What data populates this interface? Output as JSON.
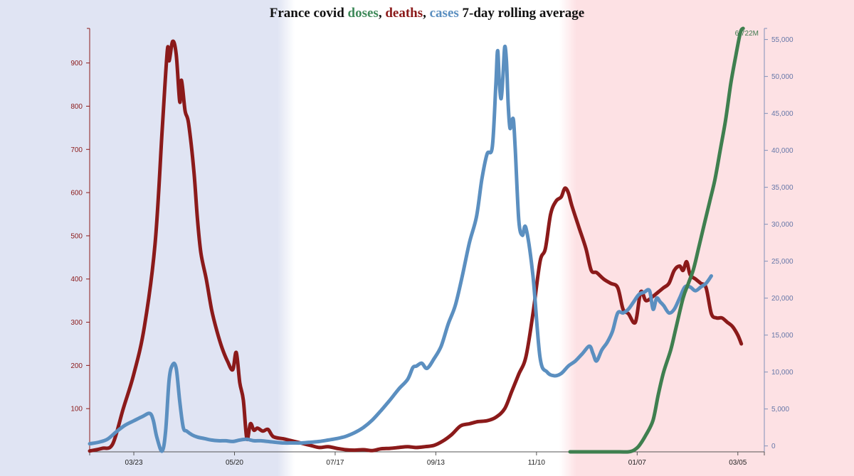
{
  "title": {
    "prefix": "France covid ",
    "doses": "doses",
    "sep1": ", ",
    "deaths": "deaths",
    "sep2": ", ",
    "cases": "cases",
    "suffix": " 7-day rolling average"
  },
  "colors": {
    "doses": "#3f7f4f",
    "deaths": "#8b1a1a",
    "cases": "#5b8fc0",
    "band_left": "#e0e4f3",
    "band_middle": "#ffffff",
    "band_right": "#fde1e4",
    "left_axis": "#8b1a1a",
    "right_axis": "#8090b8"
  },
  "chart_data": {
    "type": "line",
    "x_ticks": [
      "03/23",
      "05/20",
      "07/17",
      "09/13",
      "11/10",
      "01/07",
      "03/05"
    ],
    "x_range_days": [
      -25,
      357
    ],
    "left_axis": {
      "series": "deaths",
      "ylim": [
        0,
        980
      ],
      "ticks": [
        100,
        200,
        300,
        400,
        500,
        600,
        700,
        800,
        900
      ]
    },
    "right_axis": {
      "series": "cases",
      "ylim": [
        -800,
        56500
      ],
      "ticks": [
        0,
        5000,
        10000,
        15000,
        20000,
        25000,
        30000,
        35000,
        40000,
        45000,
        50000,
        55000
      ],
      "tick_labels": [
        "0",
        "5,000",
        "10,000",
        "15,000",
        "20,000",
        "25,000",
        "30,000",
        "35,000",
        "40,000",
        "45,000",
        "50,000",
        "55,000"
      ]
    },
    "peak_label": "6.722M",
    "series": [
      {
        "name": "deaths",
        "axis": "left",
        "points": [
          [
            -25,
            2
          ],
          [
            -18,
            8
          ],
          [
            -12,
            18
          ],
          [
            -6,
            100
          ],
          [
            0,
            180
          ],
          [
            6,
            290
          ],
          [
            12,
            480
          ],
          [
            16,
            740
          ],
          [
            19,
            930
          ],
          [
            20,
            905
          ],
          [
            22,
            950
          ],
          [
            24,
            920
          ],
          [
            26,
            810
          ],
          [
            27,
            860
          ],
          [
            29,
            790
          ],
          [
            31,
            760
          ],
          [
            34,
            650
          ],
          [
            36,
            540
          ],
          [
            38,
            460
          ],
          [
            41,
            400
          ],
          [
            44,
            330
          ],
          [
            47,
            280
          ],
          [
            50,
            240
          ],
          [
            53,
            210
          ],
          [
            56,
            190
          ],
          [
            58,
            230
          ],
          [
            60,
            160
          ],
          [
            62,
            120
          ],
          [
            64,
            30
          ],
          [
            66,
            65
          ],
          [
            68,
            50
          ],
          [
            70,
            55
          ],
          [
            73,
            48
          ],
          [
            76,
            52
          ],
          [
            79,
            35
          ],
          [
            85,
            30
          ],
          [
            90,
            25
          ],
          [
            95,
            20
          ],
          [
            100,
            15
          ],
          [
            105,
            10
          ],
          [
            110,
            12
          ],
          [
            115,
            8
          ],
          [
            120,
            5
          ],
          [
            125,
            4
          ],
          [
            130,
            5
          ],
          [
            135,
            3
          ],
          [
            140,
            7
          ],
          [
            145,
            8
          ],
          [
            150,
            10
          ],
          [
            155,
            12
          ],
          [
            160,
            10
          ],
          [
            165,
            12
          ],
          [
            170,
            15
          ],
          [
            175,
            25
          ],
          [
            180,
            40
          ],
          [
            185,
            60
          ],
          [
            190,
            65
          ],
          [
            195,
            70
          ],
          [
            200,
            72
          ],
          [
            205,
            80
          ],
          [
            210,
            100
          ],
          [
            214,
            140
          ],
          [
            218,
            180
          ],
          [
            222,
            220
          ],
          [
            226,
            320
          ],
          [
            230,
            440
          ],
          [
            233,
            470
          ],
          [
            236,
            550
          ],
          [
            239,
            580
          ],
          [
            242,
            590
          ],
          [
            244,
            610
          ],
          [
            246,
            600
          ],
          [
            248,
            570
          ],
          [
            252,
            520
          ],
          [
            256,
            470
          ],
          [
            259,
            420
          ],
          [
            262,
            415
          ],
          [
            266,
            400
          ],
          [
            270,
            390
          ],
          [
            274,
            380
          ],
          [
            277,
            330
          ],
          [
            280,
            320
          ],
          [
            284,
            300
          ],
          [
            287,
            370
          ],
          [
            290,
            350
          ],
          [
            294,
            360
          ],
          [
            297,
            370
          ],
          [
            300,
            380
          ],
          [
            303,
            390
          ],
          [
            306,
            420
          ],
          [
            309,
            430
          ],
          [
            311,
            420
          ],
          [
            313,
            440
          ],
          [
            315,
            410
          ],
          [
            318,
            400
          ],
          [
            321,
            390
          ],
          [
            324,
            380
          ],
          [
            327,
            320
          ],
          [
            330,
            310
          ],
          [
            333,
            310
          ],
          [
            336,
            300
          ],
          [
            339,
            290
          ],
          [
            342,
            270
          ],
          [
            344,
            250
          ]
        ]
      },
      {
        "name": "cases",
        "axis": "right",
        "points": [
          [
            -25,
            300
          ],
          [
            -20,
            500
          ],
          [
            -15,
            900
          ],
          [
            -10,
            1900
          ],
          [
            -5,
            2800
          ],
          [
            0,
            3400
          ],
          [
            5,
            4000
          ],
          [
            9,
            4400
          ],
          [
            11,
            3500
          ],
          [
            13,
            1200
          ],
          [
            16,
            -700
          ],
          [
            18,
            2000
          ],
          [
            20,
            9000
          ],
          [
            22,
            11000
          ],
          [
            24,
            10500
          ],
          [
            26,
            6000
          ],
          [
            28,
            2500
          ],
          [
            30,
            2000
          ],
          [
            33,
            1500
          ],
          [
            36,
            1200
          ],
          [
            40,
            1000
          ],
          [
            44,
            800
          ],
          [
            48,
            700
          ],
          [
            52,
            700
          ],
          [
            56,
            600
          ],
          [
            60,
            800
          ],
          [
            64,
            900
          ],
          [
            68,
            700
          ],
          [
            72,
            700
          ],
          [
            76,
            600
          ],
          [
            80,
            500
          ],
          [
            85,
            400
          ],
          [
            90,
            400
          ],
          [
            95,
            400
          ],
          [
            100,
            500
          ],
          [
            105,
            600
          ],
          [
            110,
            800
          ],
          [
            115,
            1000
          ],
          [
            120,
            1300
          ],
          [
            125,
            1800
          ],
          [
            130,
            2500
          ],
          [
            135,
            3500
          ],
          [
            140,
            4800
          ],
          [
            145,
            6200
          ],
          [
            150,
            7700
          ],
          [
            155,
            9000
          ],
          [
            158,
            10600
          ],
          [
            160,
            10800
          ],
          [
            163,
            11200
          ],
          [
            166,
            10500
          ],
          [
            170,
            11800
          ],
          [
            174,
            13500
          ],
          [
            178,
            16500
          ],
          [
            182,
            19000
          ],
          [
            186,
            23000
          ],
          [
            190,
            27500
          ],
          [
            194,
            31000
          ],
          [
            197,
            36000
          ],
          [
            200,
            39500
          ],
          [
            203,
            40500
          ],
          [
            205,
            49000
          ],
          [
            206,
            53500
          ],
          [
            207,
            49000
          ],
          [
            208,
            47000
          ],
          [
            209,
            50000
          ],
          [
            210,
            54000
          ],
          [
            211,
            52000
          ],
          [
            212,
            46000
          ],
          [
            213,
            43000
          ],
          [
            214,
            44000
          ],
          [
            215,
            44000
          ],
          [
            216,
            40000
          ],
          [
            218,
            30500
          ],
          [
            220,
            28500
          ],
          [
            222,
            29500
          ],
          [
            226,
            23000
          ],
          [
            230,
            12000
          ],
          [
            234,
            10000
          ],
          [
            238,
            9500
          ],
          [
            242,
            9800
          ],
          [
            246,
            10800
          ],
          [
            250,
            11500
          ],
          [
            254,
            12500
          ],
          [
            258,
            13500
          ],
          [
            260,
            12500
          ],
          [
            262,
            11500
          ],
          [
            265,
            13000
          ],
          [
            268,
            14000
          ],
          [
            271,
            15500
          ],
          [
            274,
            18000
          ],
          [
            277,
            18000
          ],
          [
            280,
            18500
          ],
          [
            283,
            19500
          ],
          [
            286,
            20500
          ],
          [
            289,
            20800
          ],
          [
            292,
            21000
          ],
          [
            294,
            18500
          ],
          [
            296,
            20000
          ],
          [
            298,
            19500
          ],
          [
            300,
            19000
          ],
          [
            303,
            18000
          ],
          [
            306,
            18500
          ],
          [
            309,
            20000
          ],
          [
            312,
            21500
          ],
          [
            315,
            21500
          ],
          [
            318,
            21000
          ],
          [
            321,
            21500
          ],
          [
            324,
            22000
          ],
          [
            327,
            23000
          ]
        ]
      },
      {
        "name": "doses",
        "axis": "right",
        "points": [
          [
            247,
            -800
          ],
          [
            255,
            -800
          ],
          [
            265,
            -800
          ],
          [
            275,
            -800
          ],
          [
            280,
            -800
          ],
          [
            283,
            -600
          ],
          [
            286,
            0
          ],
          [
            290,
            1500
          ],
          [
            294,
            3500
          ],
          [
            297,
            7000
          ],
          [
            300,
            10000
          ],
          [
            304,
            13000
          ],
          [
            307,
            16000
          ],
          [
            311,
            20000
          ],
          [
            314,
            22000
          ],
          [
            317,
            24000
          ],
          [
            320,
            27000
          ],
          [
            323,
            30000
          ],
          [
            326,
            33000
          ],
          [
            329,
            36000
          ],
          [
            332,
            40000
          ],
          [
            335,
            44000
          ],
          [
            338,
            49000
          ],
          [
            341,
            53000
          ],
          [
            343,
            55500
          ],
          [
            344,
            56300
          ],
          [
            345,
            56500
          ]
        ]
      }
    ]
  }
}
